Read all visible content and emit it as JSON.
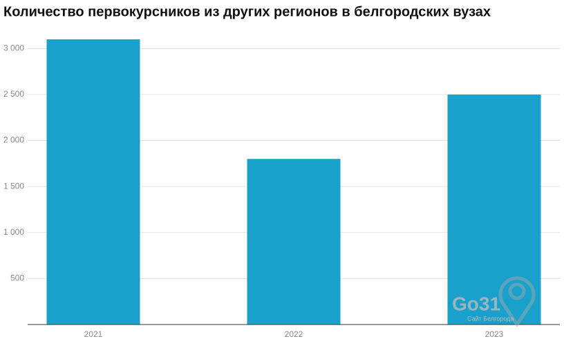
{
  "chart_data": {
    "type": "bar",
    "title": "Количество первокурсников из других регионов в белгородских вузах",
    "categories": [
      "2021",
      "2022",
      "2023"
    ],
    "values": [
      3100,
      1800,
      2500
    ],
    "color": "#1aa1cb",
    "ylim": [
      0,
      3100
    ],
    "yticks": [
      500,
      {
        "value": 1000,
        "label": "1 000"
      },
      {
        "value": 1500,
        "label": "1 500"
      },
      {
        "value": 2000,
        "label": "2 000"
      },
      {
        "value": 2500,
        "label": "2 500"
      },
      {
        "value": 3000,
        "label": "3 000"
      }
    ],
    "grid": true,
    "watermark": "Go31",
    "watermark_subtitle": "Сайт Белгорода"
  }
}
